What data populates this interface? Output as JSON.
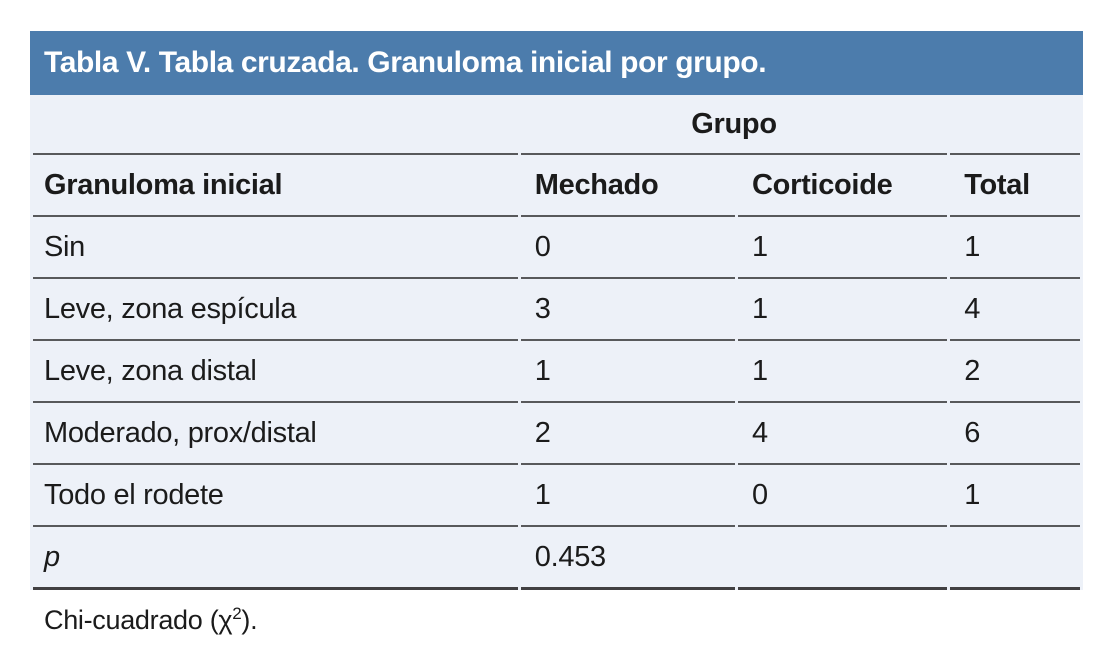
{
  "colors": {
    "title_bar": "#4c7cac",
    "body_background": "#edf1f8",
    "rule": "#58595b",
    "bottom_rule": "#414042",
    "title_text": "#ffffff",
    "body_text": "#1b1b1b"
  },
  "table": {
    "title": "Tabla V. Tabla cruzada. Granuloma inicial por grupo.",
    "group_header": "Grupo",
    "columns": [
      "Granuloma inicial",
      "Mechado",
      "Corticoide",
      "Total"
    ],
    "rows": [
      {
        "label": "Sin",
        "values": [
          "0",
          "1",
          "1"
        ]
      },
      {
        "label": "Leve, zona espícula",
        "values": [
          "3",
          "1",
          "4"
        ]
      },
      {
        "label": "Leve, zona distal",
        "values": [
          "1",
          "1",
          "2"
        ]
      },
      {
        "label": "Moderado, prox/distal",
        "values": [
          "2",
          "4",
          "6"
        ]
      },
      {
        "label": "Todo el rodete",
        "values": [
          "1",
          "0",
          "1"
        ]
      }
    ],
    "p_row": {
      "label": "p",
      "value": "0.453"
    },
    "footnote": {
      "prefix": "Chi-cuadrado (χ",
      "sup": "2",
      "suffix": ")."
    }
  }
}
